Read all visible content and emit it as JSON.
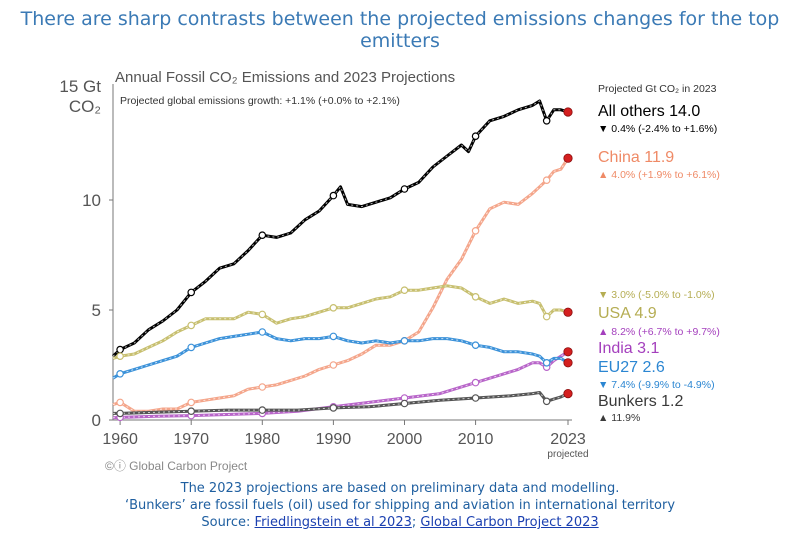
{
  "headline": "There are sharp contrasts between the projected emissions changes for the top emitters",
  "footer": {
    "line1": "The 2023 projections are based on preliminary data and modelling.",
    "line2": "‘Bunkers’ are fossil fuels (oil) used for shipping and aviation in international territory",
    "source_prefix": "Source: ",
    "link1": "Friedlingstein et al 2023",
    "separator": "; ",
    "link2": "Global Carbon Project 2023"
  },
  "chart_data": {
    "type": "line",
    "title": "Annual Fossil CO₂ Emissions and 2023 Projections",
    "subtitle": "Projected global emissions growth: +1.1% (+0.0% to +2.1%)",
    "ylabel": "15 Gt CO₂",
    "yunit_top": "15 Gt",
    "yunit_bottom": "CO₂",
    "xlim": [
      1959,
      2023
    ],
    "ylim": [
      0,
      15
    ],
    "yticks": [
      "0",
      "5",
      "10"
    ],
    "xticks": [
      "1960",
      "1970",
      "1980",
      "1990",
      "2000",
      "2010",
      "2023"
    ],
    "x_projected_label": "projected",
    "legend_header": "Projected Gt CO₂ in 2023",
    "credit": "Global Carbon Project",
    "grid": false,
    "series": [
      {
        "name": "All others",
        "label": "All others 14.0",
        "change": "▼ 0.4% (-2.4% to +1.6%)",
        "color": "#000000",
        "label_color": "#000000",
        "x": [
          1959,
          1960,
          1962,
          1964,
          1966,
          1968,
          1970,
          1972,
          1974,
          1976,
          1978,
          1980,
          1982,
          1984,
          1986,
          1988,
          1990,
          1991,
          1992,
          1994,
          1996,
          1998,
          2000,
          2002,
          2004,
          2006,
          2008,
          2009,
          2010,
          2012,
          2014,
          2016,
          2018,
          2019,
          2020,
          2021,
          2022,
          2023
        ],
        "y": [
          2.9,
          3.2,
          3.5,
          4.1,
          4.5,
          5.0,
          5.8,
          6.3,
          6.9,
          7.1,
          7.7,
          8.4,
          8.3,
          8.5,
          9.1,
          9.5,
          10.2,
          10.6,
          9.8,
          9.7,
          9.9,
          10.1,
          10.5,
          10.8,
          11.5,
          12.0,
          12.5,
          12.2,
          12.9,
          13.6,
          13.8,
          14.1,
          14.3,
          14.5,
          13.6,
          14.1,
          14.1,
          14.0
        ]
      },
      {
        "name": "China",
        "label": "China 11.9",
        "change": "▲ 4.0% (+1.9% to +6.1%)",
        "color": "#f4a58a",
        "label_color": "#ef8a66",
        "x": [
          1959,
          1960,
          1962,
          1964,
          1966,
          1968,
          1970,
          1972,
          1974,
          1976,
          1978,
          1980,
          1982,
          1984,
          1986,
          1988,
          1990,
          1992,
          1994,
          1996,
          1998,
          2000,
          2002,
          2004,
          2006,
          2008,
          2010,
          2012,
          2014,
          2016,
          2018,
          2019,
          2020,
          2021,
          2022,
          2023
        ],
        "y": [
          0.7,
          0.8,
          0.4,
          0.4,
          0.5,
          0.5,
          0.8,
          0.9,
          1.0,
          1.1,
          1.4,
          1.5,
          1.6,
          1.8,
          2.0,
          2.3,
          2.5,
          2.7,
          3.0,
          3.4,
          3.4,
          3.6,
          4.0,
          5.1,
          6.4,
          7.3,
          8.6,
          9.6,
          9.9,
          9.8,
          10.3,
          10.6,
          10.9,
          11.3,
          11.4,
          11.9
        ]
      },
      {
        "name": "USA",
        "label": "USA 4.9",
        "change": "▼ 3.0% (-5.0% to -1.0%)",
        "color": "#c7bf6f",
        "label_color": "#b5ad53",
        "x": [
          1959,
          1960,
          1962,
          1964,
          1966,
          1968,
          1970,
          1972,
          1974,
          1976,
          1978,
          1980,
          1982,
          1984,
          1986,
          1988,
          1990,
          1992,
          1994,
          1996,
          1998,
          2000,
          2002,
          2004,
          2006,
          2008,
          2010,
          2012,
          2014,
          2016,
          2018,
          2019,
          2020,
          2021,
          2022,
          2023
        ],
        "y": [
          2.8,
          2.9,
          3.0,
          3.3,
          3.6,
          4.0,
          4.3,
          4.6,
          4.6,
          4.6,
          4.9,
          4.8,
          4.4,
          4.6,
          4.7,
          4.9,
          5.1,
          5.1,
          5.3,
          5.5,
          5.6,
          5.9,
          5.9,
          6.0,
          6.1,
          6.0,
          5.6,
          5.3,
          5.5,
          5.3,
          5.4,
          5.3,
          4.7,
          5.0,
          5.0,
          4.9
        ]
      },
      {
        "name": "India",
        "label": "India 3.1",
        "change": "▲ 8.2% (+6.7% to +9.7%)",
        "color": "#b865c9",
        "label_color": "#a43fbd",
        "x": [
          1959,
          1960,
          1965,
          1970,
          1975,
          1980,
          1985,
          1990,
          1995,
          2000,
          2005,
          2010,
          2012,
          2014,
          2016,
          2018,
          2019,
          2020,
          2021,
          2022,
          2023
        ],
        "y": [
          0.1,
          0.12,
          0.17,
          0.2,
          0.25,
          0.3,
          0.4,
          0.6,
          0.8,
          1.0,
          1.2,
          1.7,
          1.9,
          2.1,
          2.3,
          2.6,
          2.6,
          2.4,
          2.7,
          2.9,
          3.1
        ]
      },
      {
        "name": "EU27",
        "label": "EU27 2.6",
        "change": "▼ 7.4% (-9.9% to -4.9%)",
        "color": "#3c92d9",
        "label_color": "#2b86d2",
        "x": [
          1959,
          1960,
          1962,
          1964,
          1966,
          1968,
          1970,
          1972,
          1974,
          1976,
          1978,
          1980,
          1982,
          1984,
          1986,
          1988,
          1990,
          1992,
          1994,
          1996,
          1998,
          2000,
          2002,
          2004,
          2006,
          2008,
          2010,
          2012,
          2014,
          2016,
          2018,
          2019,
          2020,
          2021,
          2022,
          2023
        ],
        "y": [
          1.9,
          2.1,
          2.3,
          2.5,
          2.7,
          2.9,
          3.3,
          3.5,
          3.7,
          3.8,
          3.9,
          4.0,
          3.7,
          3.6,
          3.7,
          3.7,
          3.8,
          3.6,
          3.5,
          3.6,
          3.5,
          3.6,
          3.6,
          3.7,
          3.7,
          3.6,
          3.4,
          3.3,
          3.1,
          3.1,
          3.0,
          2.9,
          2.6,
          2.8,
          2.8,
          2.6
        ]
      },
      {
        "name": "Bunkers",
        "label": "Bunkers 1.2",
        "change": "▲ 11.9%",
        "color": "#555555",
        "label_color": "#3a3a3a",
        "x": [
          1959,
          1960,
          1965,
          1970,
          1975,
          1980,
          1985,
          1990,
          1995,
          2000,
          2005,
          2010,
          2015,
          2018,
          2019,
          2020,
          2021,
          2022,
          2023
        ],
        "y": [
          0.3,
          0.3,
          0.35,
          0.4,
          0.45,
          0.45,
          0.45,
          0.55,
          0.6,
          0.75,
          0.9,
          1.0,
          1.1,
          1.2,
          1.25,
          0.85,
          0.95,
          1.05,
          1.2
        ]
      }
    ]
  }
}
